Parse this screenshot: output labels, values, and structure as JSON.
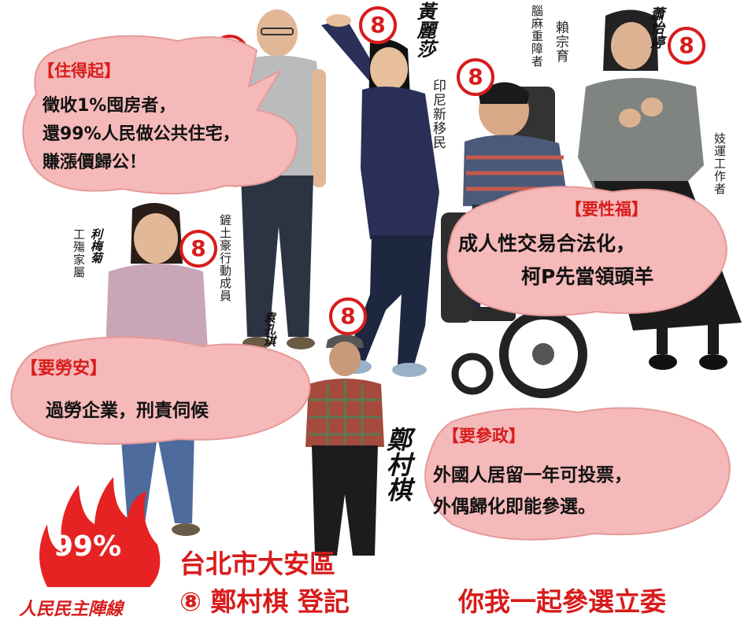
{
  "colors": {
    "accent": "#d81c1c",
    "bubble": "#f5b9b9",
    "bubble_edge": "#e59a9a",
    "flame": "#e62222"
  },
  "candidates": {
    "huang": {
      "name": "黃麗莎",
      "caption": "印尼新移民",
      "number": "8"
    },
    "lai": {
      "name": "賴宗育",
      "caption": "腦麻重障者",
      "number": "8"
    },
    "hsiao": {
      "name": "蕭怡婷",
      "caption": "妓運工作者",
      "number": "8"
    },
    "yuan": {
      "name": "袁孔琪",
      "caption": "鏟土豪行動成員",
      "number": "8"
    },
    "li": {
      "name": "利梅菊",
      "caption": "工殤家屬",
      "number": "8"
    },
    "cheng": {
      "name": "鄭村棋",
      "number": "8"
    },
    "top_left": {
      "number": "8"
    }
  },
  "bubbles": {
    "housing": {
      "tag": "【住得起】",
      "lines": [
        "徵收1%囤房者，",
        "還99%人民做公共住宅，",
        "賺漲價歸公！"
      ]
    },
    "sex": {
      "tag": "【要性福】",
      "lines": [
        "成人性交易合法化，",
        "柯P先當領頭羊"
      ]
    },
    "labor": {
      "tag": "【要勞安】",
      "lines": [
        "過勞企業，刑責伺候"
      ]
    },
    "politics": {
      "tag": "【要參政】",
      "lines": [
        "外國人居留一年可投票，",
        "外偶歸化即能參選。"
      ]
    }
  },
  "logo": {
    "percent": "99%",
    "org": "人民民主陣線"
  },
  "footer": {
    "district": "台北市大安區",
    "registration": "⑧ 鄭村棋 登記",
    "slogan": "你我一起參選立委"
  }
}
